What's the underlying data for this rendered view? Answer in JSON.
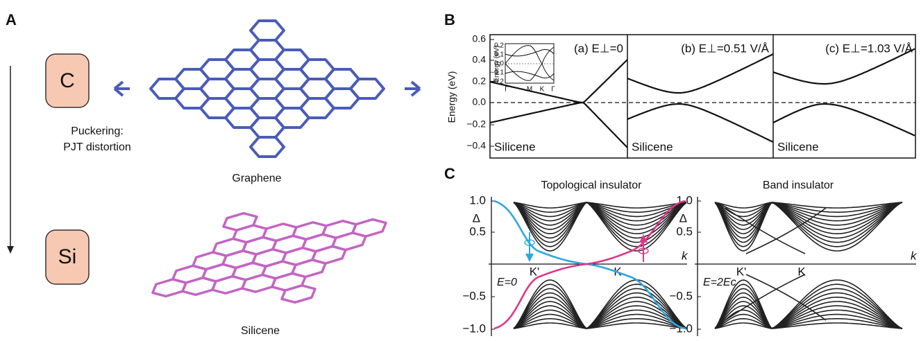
{
  "panel_a": {
    "label": "A",
    "top_element": "C",
    "bottom_element": "Si",
    "transition": [
      "Puckering:",
      "PJT distortion"
    ],
    "top_structure": "Graphene",
    "bottom_structure": "Silicene"
  },
  "panel_b": {
    "label": "B",
    "y_axis_label": "Energy (eV)",
    "yticks": [
      "0.6",
      "0.4",
      "0.2",
      "0.0",
      "−0.2",
      "−0.4"
    ],
    "plots": [
      {
        "title": "(a) E⊥=0",
        "material": "Silicene"
      },
      {
        "title": "(b) E⊥=0.51 V/Å",
        "material": "Silicene"
      },
      {
        "title": "(c) E⊥=1.03 V/Å",
        "material": "Silicene"
      }
    ],
    "inset": {
      "y_axis_label": "Energy (eV)",
      "yticks": [
        "0.2",
        "0.1",
        "0.0",
        "−0.1",
        "−0.2"
      ],
      "xticks": [
        "Γ",
        "M",
        "K",
        "Γ"
      ]
    }
  },
  "panel_c": {
    "label": "C",
    "plots": [
      {
        "title": "Topological insulator",
        "y_axis_label": "Δ",
        "x_axis_label": "k",
        "yticks": [
          "1.0",
          "0.5",
          "−0.5",
          "−1.0"
        ],
        "points": [
          "K'",
          "K"
        ],
        "condition": "E=0"
      },
      {
        "title": "Band insulator",
        "y_axis_label": "Δ",
        "x_axis_label": "k",
        "yticks": [
          "1.0",
          "0.5",
          "−0.5",
          "−1.0"
        ],
        "points": [
          "K'",
          "K"
        ],
        "condition": "E=2Ec"
      }
    ]
  }
}
